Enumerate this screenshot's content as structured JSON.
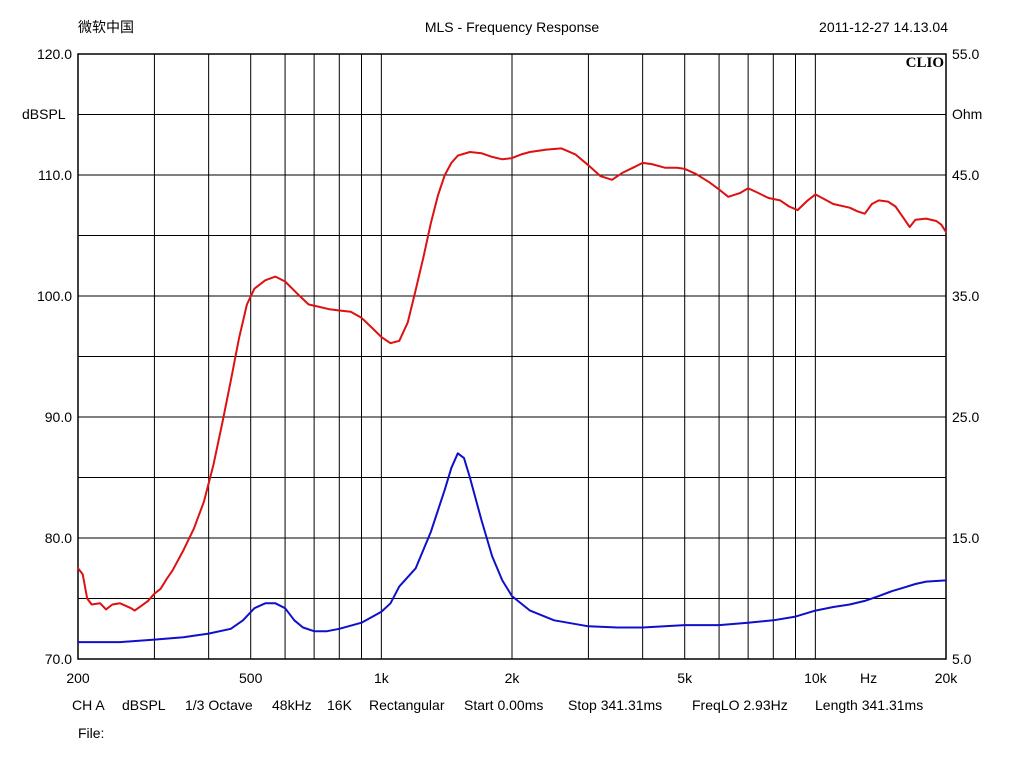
{
  "header": {
    "left": "微软中国",
    "title": "MLS - Frequency Response",
    "timestamp": "2011-12-27 14.13.04"
  },
  "logo": "CLIO",
  "footer": {
    "ch": "CH A",
    "unit": "dBSPL",
    "octave": "1/3 Octave",
    "rate": "48kHz",
    "size": "16K",
    "window": "Rectangular",
    "start": "Start 0.00ms",
    "stop": "Stop 341.31ms",
    "freqlo": "FreqLO 2.93Hz",
    "length": "Length 341.31ms",
    "file": "File:"
  },
  "colors": {
    "spl": "#dd1111",
    "impedance": "#1010cc",
    "grid": "#000000"
  },
  "chart_data": {
    "type": "line",
    "x_scale": "log",
    "xlim": [
      200,
      20000
    ],
    "ylim_left": [
      70,
      120
    ],
    "ylim_right": [
      5,
      55
    ],
    "ylabel_left": "dBSPL",
    "ylabel_right": "Ohm",
    "xlabel": "Hz",
    "x_ticks": [
      {
        "value": 200,
        "label": "200"
      },
      {
        "value": 500,
        "label": "500"
      },
      {
        "value": 1000,
        "label": "1k"
      },
      {
        "value": 2000,
        "label": "2k"
      },
      {
        "value": 5000,
        "label": "5k"
      },
      {
        "value": 10000,
        "label": "10k"
      },
      {
        "value": 20000,
        "label": "20k"
      }
    ],
    "x_grid": [
      200,
      300,
      400,
      500,
      600,
      700,
      800,
      900,
      1000,
      2000,
      3000,
      4000,
      5000,
      6000,
      7000,
      8000,
      9000,
      10000,
      20000
    ],
    "y_ticks_left": [
      {
        "value": 120,
        "label": "120.0"
      },
      {
        "value": 110,
        "label": "110.0"
      },
      {
        "value": 100,
        "label": "100.0"
      },
      {
        "value": 90,
        "label": "90.0"
      },
      {
        "value": 80,
        "label": "80.0"
      },
      {
        "value": 70,
        "label": "70.0"
      }
    ],
    "y_ticks_right": [
      {
        "value": 55,
        "label": "55.0"
      },
      {
        "value": 45,
        "label": "45.0"
      },
      {
        "value": 35,
        "label": "35.0"
      },
      {
        "value": 25,
        "label": "25.0"
      },
      {
        "value": 15,
        "label": "15.0"
      },
      {
        "value": 5,
        "label": "5.0"
      }
    ],
    "y_grid_left": [
      75,
      80,
      85,
      90,
      95,
      100,
      105,
      110,
      115
    ],
    "series": [
      {
        "axis": "left",
        "color": "#dd1111",
        "points": [
          [
            200,
            77.5
          ],
          [
            205,
            77.0
          ],
          [
            210,
            75.0
          ],
          [
            215,
            74.5
          ],
          [
            225,
            74.6
          ],
          [
            232,
            74.1
          ],
          [
            240,
            74.5
          ],
          [
            250,
            74.6
          ],
          [
            265,
            74.2
          ],
          [
            270,
            74.0
          ],
          [
            280,
            74.4
          ],
          [
            290,
            74.8
          ],
          [
            300,
            75.4
          ],
          [
            310,
            75.8
          ],
          [
            320,
            76.6
          ],
          [
            330,
            77.3
          ],
          [
            350,
            79.0
          ],
          [
            370,
            80.8
          ],
          [
            390,
            83.0
          ],
          [
            410,
            86.0
          ],
          [
            430,
            89.5
          ],
          [
            450,
            93.0
          ],
          [
            470,
            96.5
          ],
          [
            490,
            99.3
          ],
          [
            510,
            100.6
          ],
          [
            540,
            101.3
          ],
          [
            570,
            101.6
          ],
          [
            600,
            101.2
          ],
          [
            640,
            100.2
          ],
          [
            680,
            99.3
          ],
          [
            720,
            99.1
          ],
          [
            760,
            98.9
          ],
          [
            800,
            98.8
          ],
          [
            850,
            98.7
          ],
          [
            900,
            98.2
          ],
          [
            950,
            97.4
          ],
          [
            1000,
            96.6
          ],
          [
            1050,
            96.1
          ],
          [
            1100,
            96.3
          ],
          [
            1150,
            97.8
          ],
          [
            1200,
            100.5
          ],
          [
            1250,
            103.2
          ],
          [
            1300,
            106.0
          ],
          [
            1350,
            108.3
          ],
          [
            1400,
            110.0
          ],
          [
            1450,
            111.0
          ],
          [
            1500,
            111.6
          ],
          [
            1600,
            111.9
          ],
          [
            1700,
            111.8
          ],
          [
            1800,
            111.5
          ],
          [
            1900,
            111.3
          ],
          [
            2000,
            111.4
          ],
          [
            2100,
            111.7
          ],
          [
            2200,
            111.9
          ],
          [
            2400,
            112.1
          ],
          [
            2600,
            112.2
          ],
          [
            2800,
            111.7
          ],
          [
            3000,
            110.8
          ],
          [
            3200,
            109.9
          ],
          [
            3400,
            109.6
          ],
          [
            3600,
            110.2
          ],
          [
            3800,
            110.6
          ],
          [
            4000,
            111.0
          ],
          [
            4200,
            110.9
          ],
          [
            4500,
            110.6
          ],
          [
            4800,
            110.6
          ],
          [
            5000,
            110.5
          ],
          [
            5300,
            110.1
          ],
          [
            5700,
            109.4
          ],
          [
            6000,
            108.8
          ],
          [
            6300,
            108.2
          ],
          [
            6700,
            108.5
          ],
          [
            7000,
            108.9
          ],
          [
            7300,
            108.6
          ],
          [
            7800,
            108.1
          ],
          [
            8300,
            107.9
          ],
          [
            8700,
            107.4
          ],
          [
            9100,
            107.1
          ],
          [
            9600,
            107.9
          ],
          [
            10000,
            108.4
          ],
          [
            10500,
            108.0
          ],
          [
            11000,
            107.6
          ],
          [
            12000,
            107.3
          ],
          [
            12500,
            107.0
          ],
          [
            13000,
            106.8
          ],
          [
            13500,
            107.6
          ],
          [
            14000,
            107.9
          ],
          [
            14700,
            107.8
          ],
          [
            15300,
            107.4
          ],
          [
            16000,
            106.4
          ],
          [
            16500,
            105.7
          ],
          [
            17000,
            106.3
          ],
          [
            18000,
            106.4
          ],
          [
            19000,
            106.2
          ],
          [
            19500,
            105.9
          ],
          [
            20000,
            105.3
          ]
        ]
      },
      {
        "axis": "right",
        "color": "#1010cc",
        "points": [
          [
            200,
            6.4
          ],
          [
            250,
            6.4
          ],
          [
            300,
            6.6
          ],
          [
            350,
            6.8
          ],
          [
            400,
            7.1
          ],
          [
            450,
            7.5
          ],
          [
            480,
            8.2
          ],
          [
            510,
            9.2
          ],
          [
            540,
            9.6
          ],
          [
            570,
            9.6
          ],
          [
            600,
            9.2
          ],
          [
            630,
            8.2
          ],
          [
            660,
            7.6
          ],
          [
            700,
            7.3
          ],
          [
            750,
            7.3
          ],
          [
            800,
            7.5
          ],
          [
            900,
            8.0
          ],
          [
            1000,
            8.9
          ],
          [
            1050,
            9.6
          ],
          [
            1100,
            11.0
          ],
          [
            1200,
            12.5
          ],
          [
            1300,
            15.5
          ],
          [
            1400,
            19.0
          ],
          [
            1450,
            20.8
          ],
          [
            1500,
            22.0
          ],
          [
            1550,
            21.6
          ],
          [
            1600,
            20.0
          ],
          [
            1700,
            16.5
          ],
          [
            1800,
            13.5
          ],
          [
            1900,
            11.5
          ],
          [
            2000,
            10.2
          ],
          [
            2200,
            9.0
          ],
          [
            2500,
            8.2
          ],
          [
            3000,
            7.7
          ],
          [
            3500,
            7.6
          ],
          [
            4000,
            7.6
          ],
          [
            5000,
            7.8
          ],
          [
            6000,
            7.8
          ],
          [
            7000,
            8.0
          ],
          [
            8000,
            8.2
          ],
          [
            9000,
            8.5
          ],
          [
            10000,
            9.0
          ],
          [
            11000,
            9.3
          ],
          [
            12000,
            9.5
          ],
          [
            13000,
            9.8
          ],
          [
            14000,
            10.2
          ],
          [
            15000,
            10.6
          ],
          [
            16000,
            10.9
          ],
          [
            17000,
            11.2
          ],
          [
            18000,
            11.4
          ],
          [
            20000,
            11.5
          ]
        ]
      }
    ]
  }
}
